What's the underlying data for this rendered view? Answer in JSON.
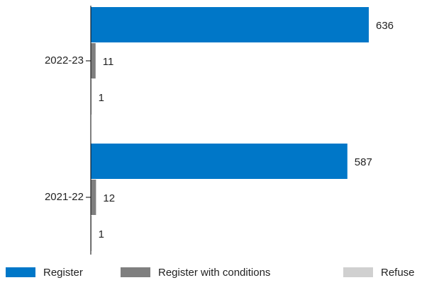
{
  "chart_data": {
    "type": "barh",
    "categories": [
      "2022-23",
      "2021-22"
    ],
    "series": [
      {
        "name": "Register",
        "color": "#0077c8",
        "values": [
          636,
          587
        ]
      },
      {
        "name": "Register with conditions",
        "color": "#7f7f7f",
        "values": [
          11,
          12
        ]
      },
      {
        "name": "Refuse",
        "color": "#d0d0d0",
        "values": [
          1,
          1
        ]
      }
    ],
    "legend": "bottom"
  }
}
